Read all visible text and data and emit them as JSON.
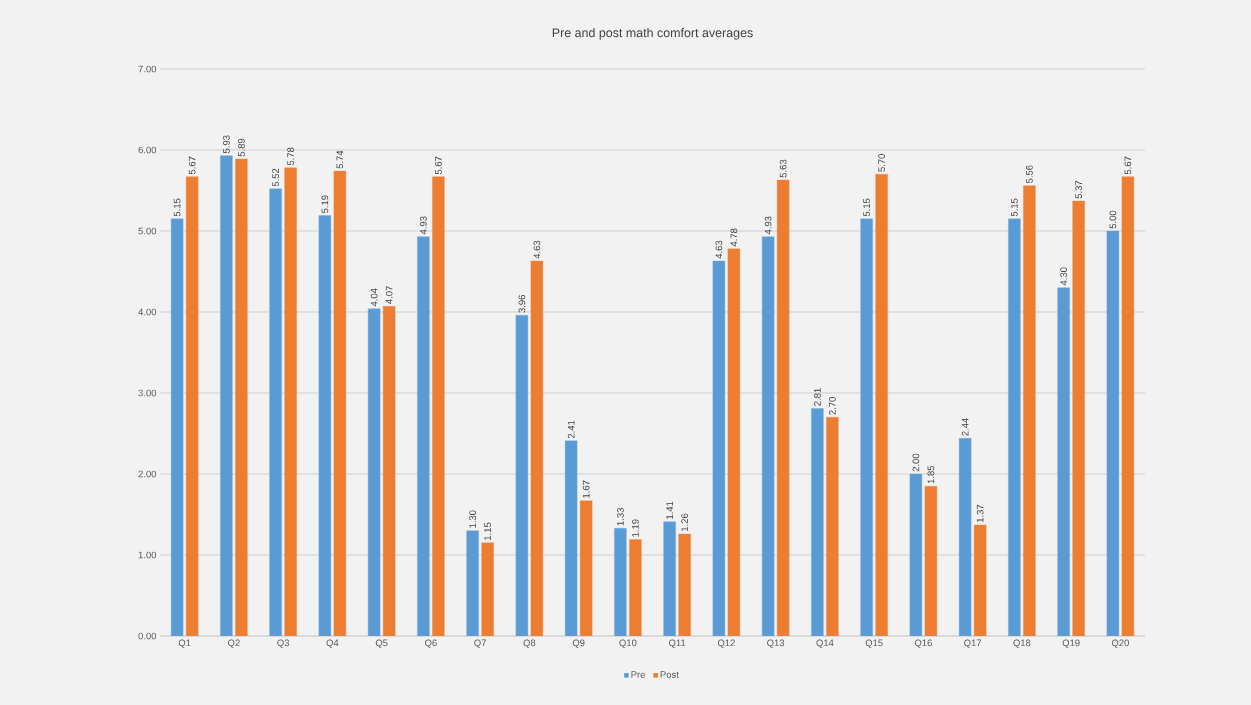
{
  "chart_data": {
    "type": "bar",
    "title": "Pre and post math comfort averages",
    "categories": [
      "Q1",
      "Q2",
      "Q3",
      "Q4",
      "Q5",
      "Q6",
      "Q7",
      "Q8",
      "Q9",
      "Q10",
      "Q11",
      "Q12",
      "Q13",
      "Q14",
      "Q15",
      "Q16",
      "Q17",
      "Q18",
      "Q19",
      "Q20"
    ],
    "series": [
      {
        "name": "Pre",
        "color": "#5b9bd5",
        "values": [
          5.15,
          5.93,
          5.52,
          5.19,
          4.04,
          4.93,
          1.3,
          3.96,
          2.41,
          1.33,
          1.41,
          4.63,
          4.93,
          2.81,
          5.15,
          2.0,
          2.44,
          5.15,
          4.3,
          5.0
        ],
        "value_labels": [
          "5.15",
          "5.93",
          "5.52",
          "5.19",
          "4.04",
          "4.93",
          "1.30",
          "3.96",
          "2.41",
          "1.33",
          "1.41",
          "4.63",
          "4.93",
          "2.81",
          "5.15",
          "2.00",
          "2.44",
          "5.15",
          "4.30",
          "5.00"
        ]
      },
      {
        "name": "Post",
        "color": "#ed7d31",
        "values": [
          5.67,
          5.89,
          5.78,
          5.74,
          4.07,
          5.67,
          1.15,
          4.63,
          1.67,
          1.19,
          1.26,
          4.78,
          5.63,
          2.7,
          5.7,
          1.85,
          1.37,
          5.56,
          5.37,
          5.67
        ],
        "value_labels": [
          "5.67",
          "5.89",
          "5.78",
          "5.74",
          "4.07",
          "5.67",
          "1.15",
          "4.63",
          "1.67",
          "1.19",
          "1.26",
          "4.78",
          "5.63",
          "2.70",
          "5.70",
          "1.85",
          "1.37",
          "5.56",
          "5.37",
          "5.67"
        ]
      }
    ],
    "ylim": [
      0,
      7
    ],
    "yticks": [
      {
        "value": 0,
        "label": "0.00"
      },
      {
        "value": 1,
        "label": "1.00"
      },
      {
        "value": 2,
        "label": "2.00"
      },
      {
        "value": 3,
        "label": "3.00"
      },
      {
        "value": 4,
        "label": "4.00"
      },
      {
        "value": 5,
        "label": "5.00"
      },
      {
        "value": 6,
        "label": "6.00"
      },
      {
        "value": 7,
        "label": "7.00"
      }
    ],
    "grid": "y",
    "legend": "bottom"
  }
}
